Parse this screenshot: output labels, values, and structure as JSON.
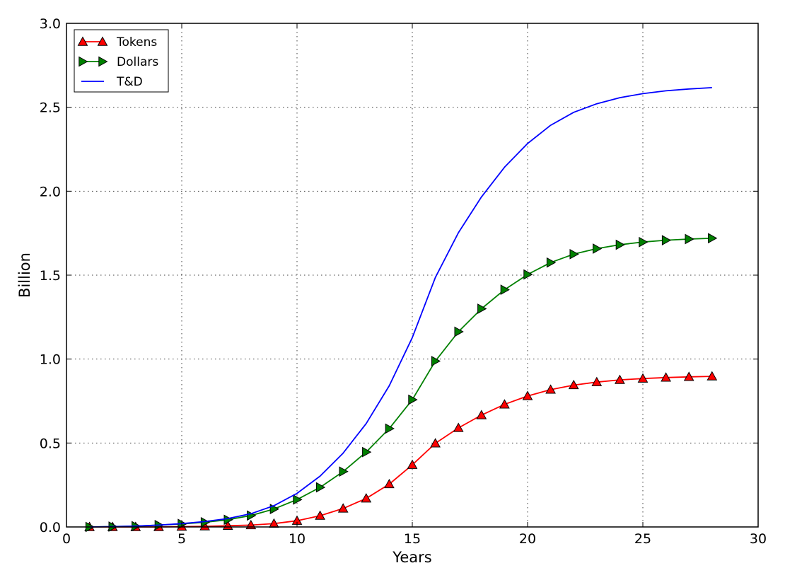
{
  "chart_data": {
    "type": "line",
    "title": "",
    "xlabel": "Years",
    "ylabel": "Billion",
    "xlim": [
      0,
      30
    ],
    "ylim": [
      0.0,
      3.0
    ],
    "xticks": [
      "0",
      "5",
      "10",
      "15",
      "20",
      "25",
      "30"
    ],
    "yticks": [
      "0.0",
      "0.5",
      "1.0",
      "1.5",
      "2.0",
      "2.5",
      "3.0"
    ],
    "grid": true,
    "legend_position": "top-left",
    "x": [
      1,
      2,
      3,
      4,
      5,
      6,
      7,
      8,
      9,
      10,
      11,
      12,
      13,
      14,
      15,
      16,
      17,
      18,
      19,
      20,
      21,
      22,
      23,
      24,
      25,
      26,
      27,
      28
    ],
    "series": [
      {
        "name": "Tokens",
        "color": "#ff0000",
        "marker": "triangle-up",
        "values": [
          0.0,
          0.0,
          0.0,
          0.0,
          0.002,
          0.004,
          0.007,
          0.011,
          0.02,
          0.037,
          0.067,
          0.11,
          0.17,
          0.255,
          0.37,
          0.498,
          0.59,
          0.666,
          0.73,
          0.78,
          0.818,
          0.845,
          0.863,
          0.876,
          0.884,
          0.89,
          0.894,
          0.897
        ]
      },
      {
        "name": "Dollars",
        "color": "#008000",
        "marker": "triangle-right",
        "values": [
          0.0,
          0.002,
          0.005,
          0.011,
          0.018,
          0.028,
          0.043,
          0.068,
          0.107,
          0.163,
          0.236,
          0.33,
          0.446,
          0.586,
          0.758,
          0.988,
          1.163,
          1.3,
          1.413,
          1.504,
          1.575,
          1.625,
          1.658,
          1.681,
          1.697,
          1.708,
          1.715,
          1.72
        ]
      },
      {
        "name": "T&D",
        "color": "#0000ff",
        "marker": "none",
        "values": [
          0.0,
          0.002,
          0.005,
          0.011,
          0.02,
          0.032,
          0.05,
          0.079,
          0.127,
          0.2,
          0.303,
          0.44,
          0.616,
          0.841,
          1.128,
          1.486,
          1.753,
          1.966,
          2.143,
          2.284,
          2.393,
          2.47,
          2.521,
          2.557,
          2.581,
          2.598,
          2.609,
          2.617
        ]
      }
    ]
  }
}
